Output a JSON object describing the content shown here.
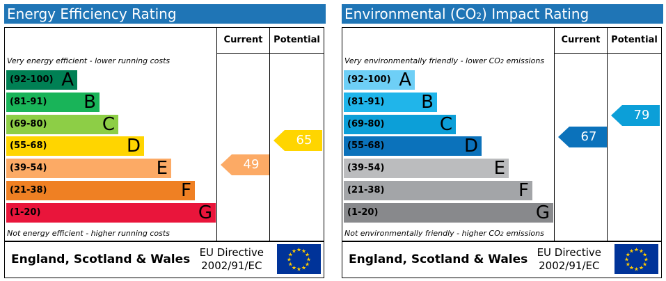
{
  "chart_data": [
    {
      "type": "bar",
      "title": "Energy Efficiency Rating",
      "columns": [
        "Current",
        "Potential"
      ],
      "top_note": "Very energy efficient - lower running costs",
      "bottom_note": "Not energy efficient - higher running costs",
      "bands": [
        {
          "range": "(92-100)",
          "letter": "A",
          "color": "#008054"
        },
        {
          "range": "(81-91)",
          "letter": "B",
          "color": "#19b459"
        },
        {
          "range": "(69-80)",
          "letter": "C",
          "color": "#8dce46"
        },
        {
          "range": "(55-68)",
          "letter": "D",
          "color": "#ffd500"
        },
        {
          "range": "(39-54)",
          "letter": "E",
          "color": "#fcaa65"
        },
        {
          "range": "(21-38)",
          "letter": "F",
          "color": "#ef8023"
        },
        {
          "range": "(1-20)",
          "letter": "G",
          "color": "#e9153b"
        }
      ],
      "current": {
        "value": 49,
        "band": "E",
        "color": "#fcaa65"
      },
      "potential": {
        "value": 65,
        "band": "D",
        "color": "#ffd500"
      },
      "footer": {
        "region": "England, Scotland & Wales",
        "directive_line1": "EU Directive",
        "directive_line2": "2002/91/EC"
      }
    },
    {
      "type": "bar",
      "title_pre": "Environmental (CO",
      "title_sub": "2",
      "title_post": ") Impact Rating",
      "columns": [
        "Current",
        "Potential"
      ],
      "top_note_pre": "Very environmentally friendly - lower CO",
      "top_note_sub": "2",
      "top_note_post": " emissions",
      "bottom_note_pre": "Not environmentally friendly - higher CO",
      "bottom_note_sub": "2",
      "bottom_note_post": " emissions",
      "bands": [
        {
          "range": "(92-100)",
          "letter": "A",
          "color": "#6ecff6"
        },
        {
          "range": "(81-91)",
          "letter": "B",
          "color": "#20b5ea"
        },
        {
          "range": "(69-80)",
          "letter": "C",
          "color": "#0c9fd8"
        },
        {
          "range": "(55-68)",
          "letter": "D",
          "color": "#0b72bb"
        },
        {
          "range": "(39-54)",
          "letter": "E",
          "color": "#bbbcbe"
        },
        {
          "range": "(21-38)",
          "letter": "F",
          "color": "#a3a5a8"
        },
        {
          "range": "(1-20)",
          "letter": "G",
          "color": "#88898c"
        }
      ],
      "current": {
        "value": 67,
        "band": "D",
        "color": "#0b72bb"
      },
      "potential": {
        "value": 79,
        "band": "C",
        "color": "#0c9fd8"
      },
      "footer": {
        "region": "England, Scotland & Wales",
        "directive_line1": "EU Directive",
        "directive_line2": "2002/91/EC"
      }
    }
  ]
}
